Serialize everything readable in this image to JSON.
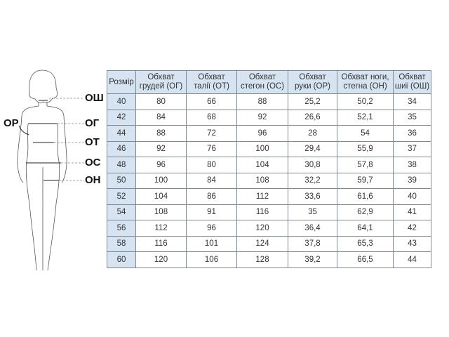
{
  "figure_labels": {
    "neck": "ОШ",
    "chest": "ОГ",
    "arm": "ОР",
    "waist": "ОТ",
    "hips": "ОС",
    "leg": "ОН"
  },
  "table": {
    "headers": [
      "Розмір",
      "Обхват грудей (ОГ)",
      "Обхват талії (ОТ)",
      "Обхват стегон (ОС)",
      "Обхват руки (ОР)",
      "Обхват ноги, стегна (ОН)",
      "Обхват шиї (ОШ)"
    ],
    "header_lines": [
      [
        "Розмір"
      ],
      [
        "Обхват",
        "грудей (ОГ)"
      ],
      [
        "Обхват",
        "талії (ОТ)"
      ],
      [
        "Обхват",
        "стегон (ОС)"
      ],
      [
        "Обхват",
        "руки (ОР)"
      ],
      [
        "Обхват ноги,",
        "стегна (ОН)"
      ],
      [
        "Обхват",
        "шиї (ОШ)"
      ]
    ],
    "rows": [
      [
        "40",
        "80",
        "66",
        "88",
        "25,2",
        "50,2",
        "34"
      ],
      [
        "42",
        "84",
        "68",
        "92",
        "26,6",
        "52,1",
        "35"
      ],
      [
        "44",
        "88",
        "72",
        "96",
        "28",
        "54",
        "36"
      ],
      [
        "46",
        "92",
        "76",
        "100",
        "29,4",
        "55,9",
        "37"
      ],
      [
        "48",
        "96",
        "80",
        "104",
        "30,8",
        "57,8",
        "38"
      ],
      [
        "50",
        "100",
        "84",
        "108",
        "32,2",
        "59,7",
        "39"
      ],
      [
        "52",
        "104",
        "86",
        "112",
        "33,6",
        "61,6",
        "40"
      ],
      [
        "54",
        "108",
        "91",
        "116",
        "35",
        "62,9",
        "41"
      ],
      [
        "56",
        "112",
        "96",
        "120",
        "36,4",
        "64,1",
        "42"
      ],
      [
        "58",
        "116",
        "101",
        "124",
        "37,8",
        "65,3",
        "43"
      ],
      [
        "60",
        "120",
        "106",
        "128",
        "39,2",
        "66,5",
        "44"
      ]
    ]
  },
  "colors": {
    "header_bg": "#d5e4f0",
    "border": "#7d8a96"
  }
}
